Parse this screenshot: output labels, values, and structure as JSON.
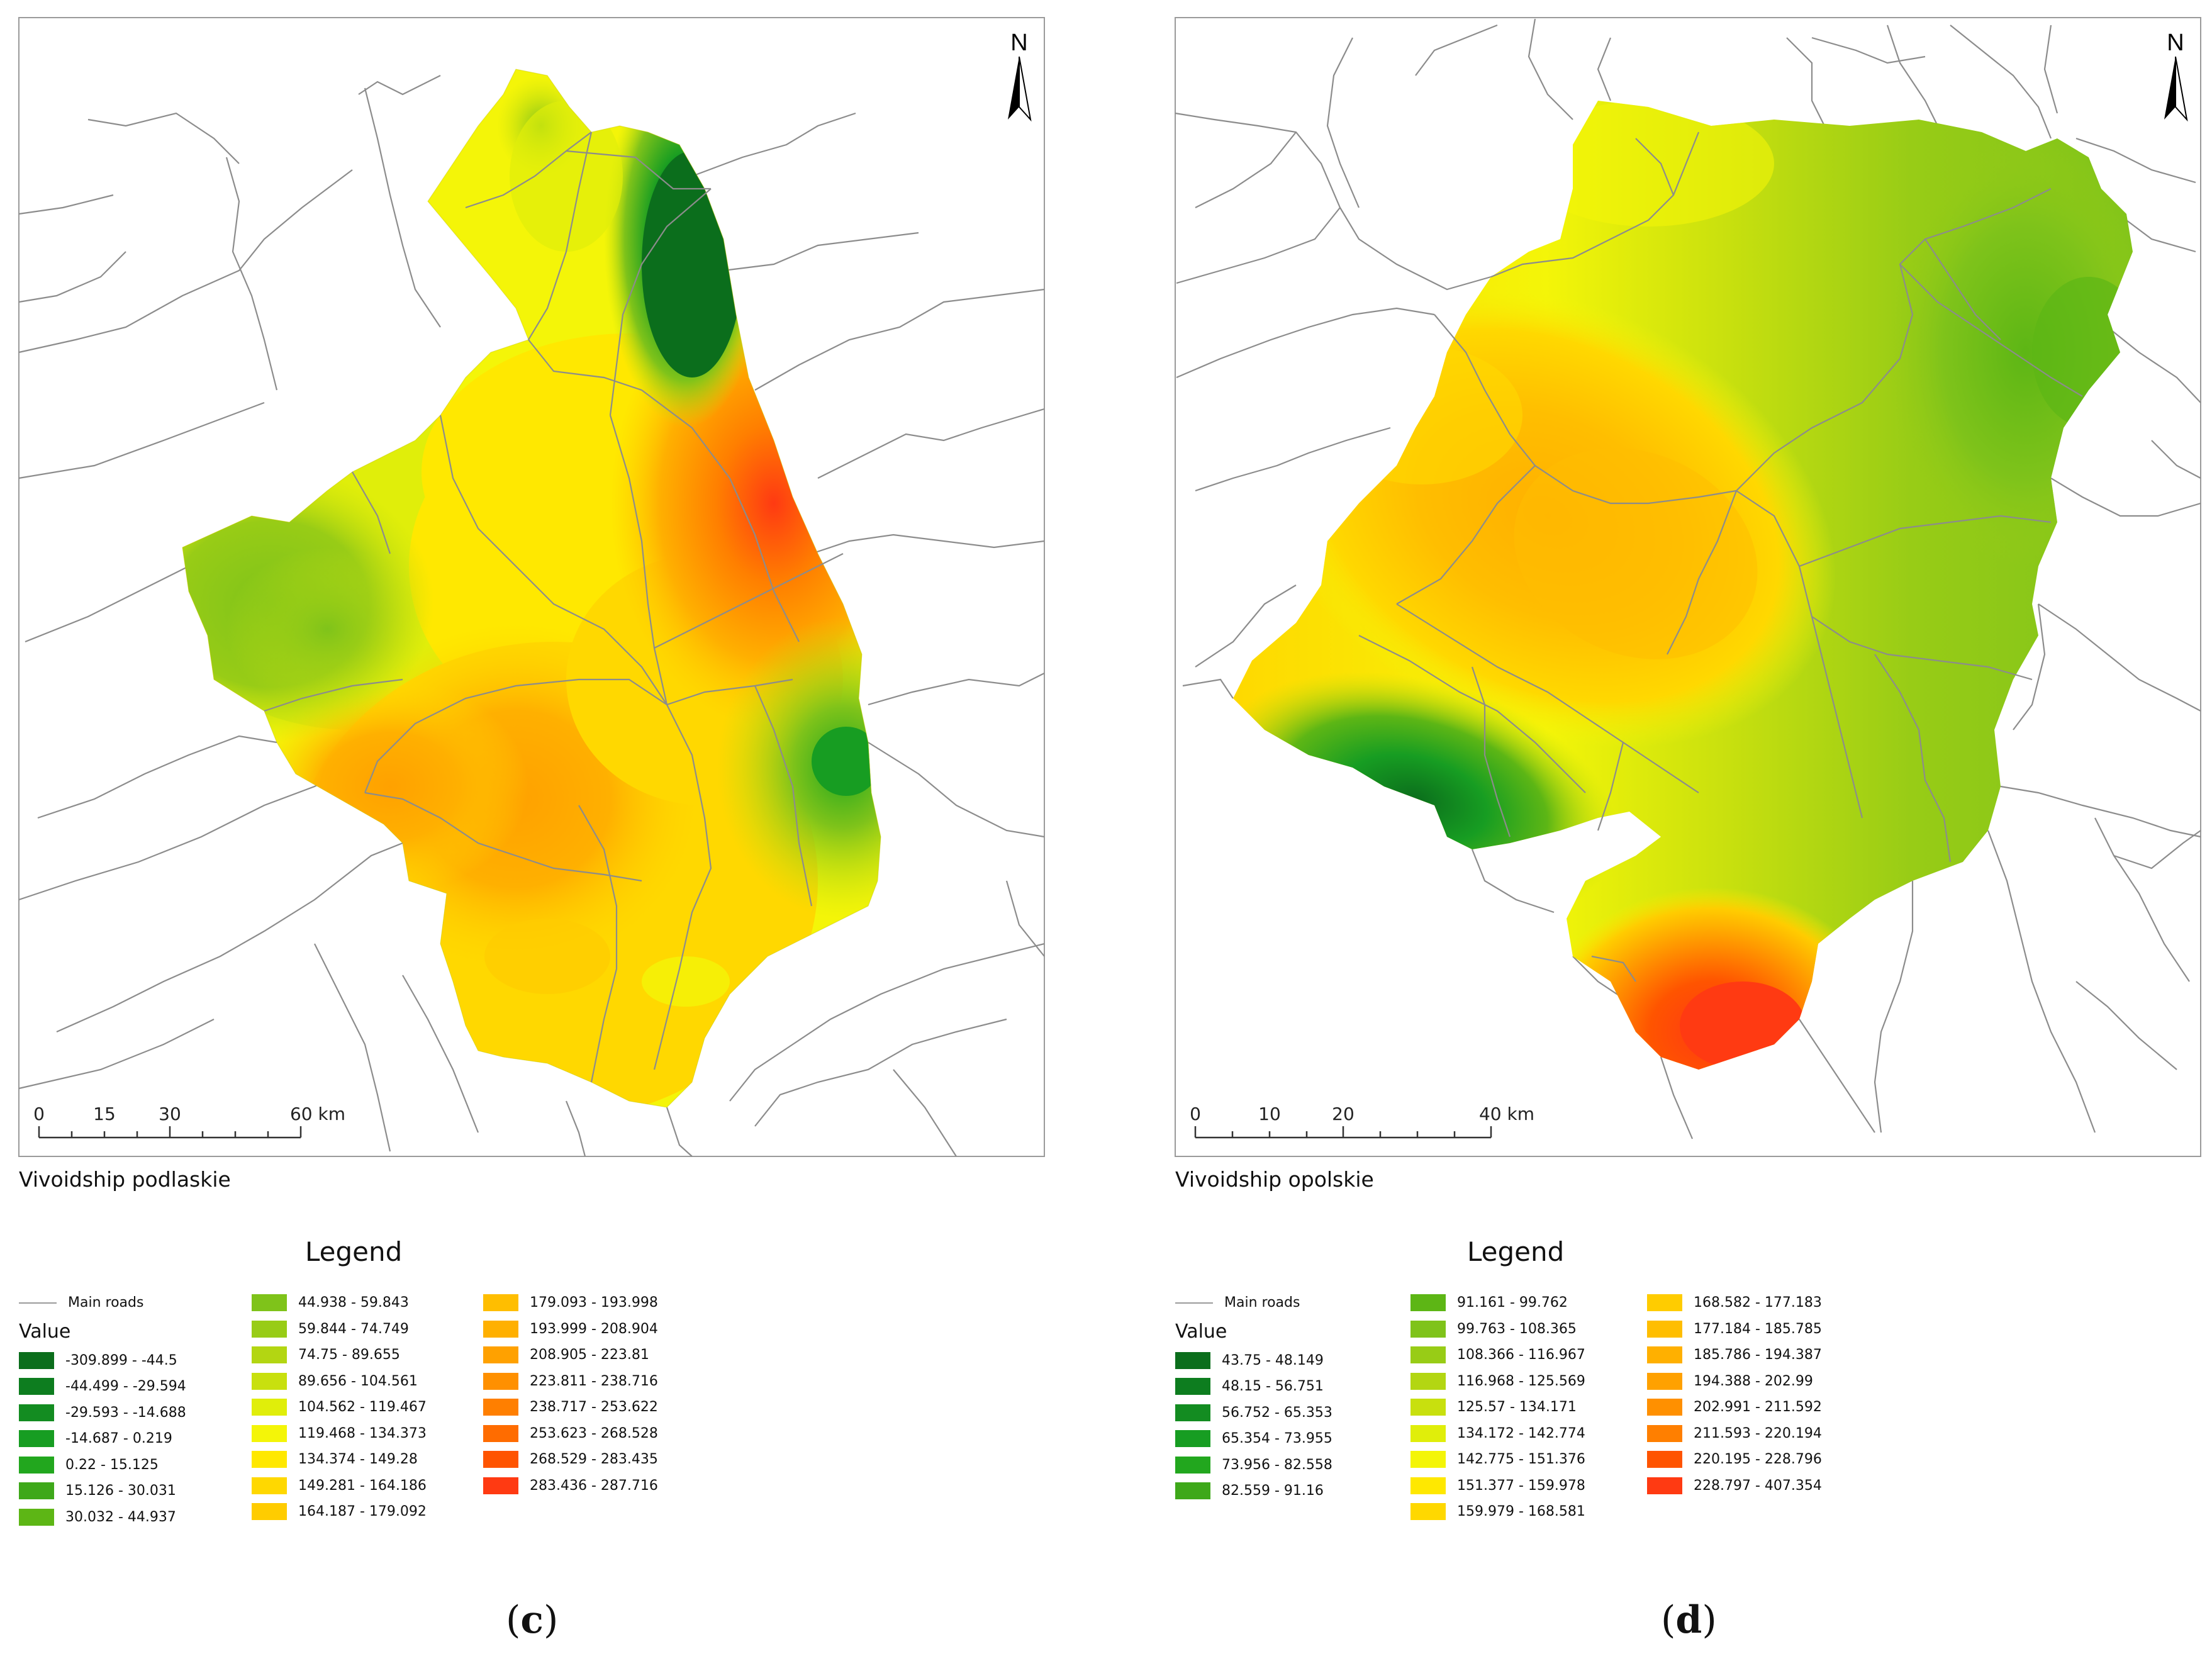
{
  "panels": [
    {
      "id": "c",
      "region_label": "Vivoidship podlaskie",
      "caption": "c",
      "north_label": "N",
      "scalebar": {
        "ticks": [
          "0",
          "15",
          "30",
          "60 km"
        ]
      },
      "legend": {
        "title": "Legend",
        "roads_label": "Main roads",
        "value_label": "Value",
        "classes": [
          {
            "range": "-309.899 - -44.5",
            "color": "#0b6e1c"
          },
          {
            "range": "-44.499 - -29.594",
            "color": "#0d7d1f"
          },
          {
            "range": "-29.593 - -14.688",
            "color": "#138c21"
          },
          {
            "range": "-14.687 - 0.219",
            "color": "#179d22"
          },
          {
            "range": "0.22 - 15.125",
            "color": "#22a71e"
          },
          {
            "range": "15.126 - 30.031",
            "color": "#3ea81a"
          },
          {
            "range": "30.032 - 44.937",
            "color": "#5db615"
          },
          {
            "range": "44.938 - 59.843",
            "color": "#7fc31a"
          },
          {
            "range": "59.844 - 74.749",
            "color": "#98cc16"
          },
          {
            "range": "74.75 - 89.655",
            "color": "#b3d612"
          },
          {
            "range": "89.656 - 104.561",
            "color": "#c8e00e"
          },
          {
            "range": "104.562 - 119.467",
            "color": "#e0ee0a"
          },
          {
            "range": "119.468 - 134.373",
            "color": "#f4f508"
          },
          {
            "range": "134.374 - 149.28",
            "color": "#ffe800"
          },
          {
            "range": "149.281 - 164.186",
            "color": "#ffd800"
          },
          {
            "range": "164.187 - 179.092",
            "color": "#ffcc00"
          },
          {
            "range": "179.093 - 193.998",
            "color": "#ffbe00"
          },
          {
            "range": "193.999 - 208.904",
            "color": "#ffb000"
          },
          {
            "range": "208.905 - 223.81",
            "color": "#ffa100"
          },
          {
            "range": "223.811 - 238.716",
            "color": "#ff9000"
          },
          {
            "range": "238.717 - 253.622",
            "color": "#ff7f00"
          },
          {
            "range": "253.623 - 268.528",
            "color": "#ff6c00"
          },
          {
            "range": "268.529 - 283.435",
            "color": "#ff5400"
          },
          {
            "range": "283.436 - 287.716",
            "color": "#ff3a12"
          }
        ]
      }
    },
    {
      "id": "d",
      "region_label": "Vivoidship opolskie",
      "caption": "d",
      "north_label": "N",
      "scalebar": {
        "ticks": [
          "0",
          "10",
          "20",
          "40 km"
        ]
      },
      "legend": {
        "title": "Legend",
        "roads_label": "Main roads",
        "value_label": "Value",
        "classes": [
          {
            "range": "43.75 - 48.149",
            "color": "#0b6e1c"
          },
          {
            "range": "48.15 - 56.751",
            "color": "#0d7d1f"
          },
          {
            "range": "56.752 - 65.353",
            "color": "#138c21"
          },
          {
            "range": "65.354 - 73.955",
            "color": "#179d22"
          },
          {
            "range": "73.956 - 82.558",
            "color": "#22a71e"
          },
          {
            "range": "82.559 - 91.16",
            "color": "#3ea81a"
          },
          {
            "range": "91.161 - 99.762",
            "color": "#5db615"
          },
          {
            "range": "99.763 - 108.365",
            "color": "#7fc31a"
          },
          {
            "range": "108.366 - 116.967",
            "color": "#98cc16"
          },
          {
            "range": "116.968 - 125.569",
            "color": "#b3d612"
          },
          {
            "range": "125.57 - 134.171",
            "color": "#c8e00e"
          },
          {
            "range": "134.172 - 142.774",
            "color": "#e0ee0a"
          },
          {
            "range": "142.775 - 151.376",
            "color": "#f4f508"
          },
          {
            "range": "151.377 - 159.978",
            "color": "#ffe800"
          },
          {
            "range": "159.979 - 168.581",
            "color": "#ffd800"
          },
          {
            "range": "168.582 - 177.183",
            "color": "#ffcc00"
          },
          {
            "range": "177.184 - 185.785",
            "color": "#ffbe00"
          },
          {
            "range": "185.786 - 194.387",
            "color": "#ffb000"
          },
          {
            "range": "194.388 - 202.99",
            "color": "#ffa100"
          },
          {
            "range": "202.991 - 211.592",
            "color": "#ff9000"
          },
          {
            "range": "211.593 - 220.194",
            "color": "#ff7f00"
          },
          {
            "range": "220.195 - 228.796",
            "color": "#ff5400"
          },
          {
            "range": "228.797 - 407.354",
            "color": "#ff3a12"
          }
        ]
      }
    }
  ]
}
